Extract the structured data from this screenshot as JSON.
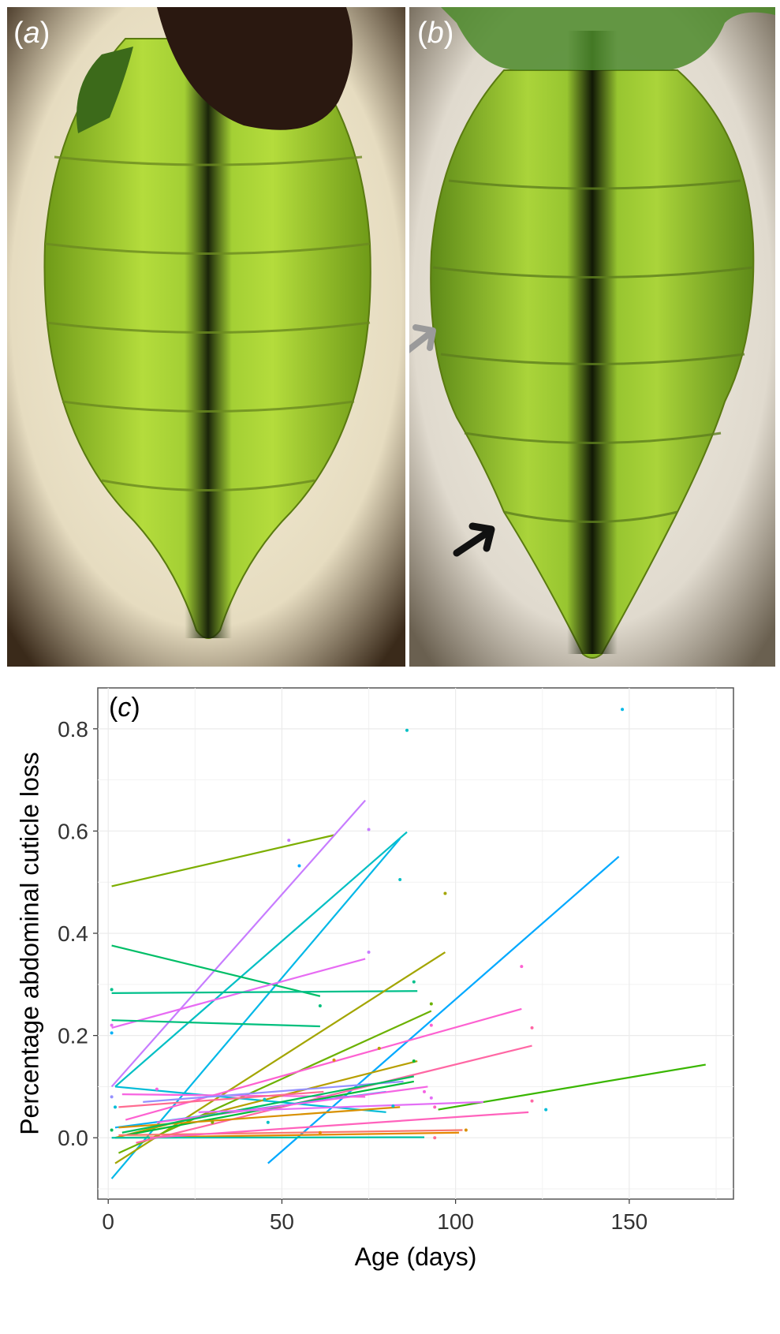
{
  "panels": {
    "a": {
      "label_open": "(",
      "label_letter": "a",
      "label_close": ")"
    },
    "b": {
      "label_open": "(",
      "label_letter": "b",
      "label_close": ")"
    },
    "c": {
      "label_open": "(",
      "label_letter": "c",
      "label_close": ")"
    }
  },
  "colors": {
    "leaf_green": "#8cc82a",
    "midrib_dark": "#1f2a0e",
    "background_light": "#f3ecd6",
    "arrow_gray": "#9a9a9a",
    "arrow_black": "#111111"
  },
  "chart_data": {
    "type": "line",
    "xlabel": "Age (days)",
    "ylabel": "Percentage abdominal cuticle loss",
    "xlim": [
      -3,
      180
    ],
    "ylim": [
      -0.12,
      0.88
    ],
    "x_ticks": [
      0,
      50,
      100,
      150
    ],
    "y_ticks": [
      0.0,
      0.2,
      0.4,
      0.6,
      0.8
    ],
    "x_tick_labels": [
      "0",
      "50",
      "100",
      "150"
    ],
    "y_tick_labels": [
      "0.0",
      "0.2",
      "0.4",
      "0.6",
      "0.8"
    ],
    "grid": true,
    "series": [
      {
        "color": "#7cae00",
        "x": [
          1,
          65
        ],
        "y": [
          0.492,
          0.592
        ]
      },
      {
        "color": "#00bfc4",
        "x": [
          2,
          86
        ],
        "y": [
          0.1,
          0.598
        ]
      },
      {
        "color": "#c77cff",
        "x": [
          1,
          74
        ],
        "y": [
          0.1,
          0.66
        ]
      },
      {
        "color": "#00b8e7",
        "x": [
          1,
          84
        ],
        "y": [
          -0.08,
          0.585
        ]
      },
      {
        "color": "#00a9ff",
        "x": [
          46,
          147
        ],
        "y": [
          -0.05,
          0.55
        ]
      },
      {
        "color": "#00be67",
        "x": [
          1,
          61
        ],
        "y": [
          0.376,
          0.277
        ]
      },
      {
        "color": "#e76bf3",
        "x": [
          1,
          74
        ],
        "y": [
          0.215,
          0.35
        ]
      },
      {
        "color": "#00c08b",
        "x": [
          1,
          89
        ],
        "y": [
          0.283,
          0.287
        ]
      },
      {
        "color": "#00bf7d",
        "x": [
          1,
          61
        ],
        "y": [
          0.23,
          0.218
        ]
      },
      {
        "color": "#a3a500",
        "x": [
          2,
          97
        ],
        "y": [
          -0.05,
          0.363
        ]
      },
      {
        "color": "#6bb100",
        "x": [
          3,
          93
        ],
        "y": [
          -0.03,
          0.248
        ]
      },
      {
        "color": "#fd61d1",
        "x": [
          5,
          119
        ],
        "y": [
          0.035,
          0.252
        ]
      },
      {
        "color": "#ff67a4",
        "x": [
          8,
          122
        ],
        "y": [
          -0.01,
          0.18
        ]
      },
      {
        "color": "#39b600",
        "x": [
          95,
          172
        ],
        "y": [
          0.055,
          0.143
        ]
      },
      {
        "color": "#00bcd8",
        "x": [
          2,
          80
        ],
        "y": [
          0.1,
          0.05
        ]
      },
      {
        "color": "#f763e0",
        "x": [
          4,
          74
        ],
        "y": [
          0.085,
          0.08
        ]
      },
      {
        "color": "#b79f00",
        "x": [
          2,
          89
        ],
        "y": [
          0.0,
          0.15
        ]
      },
      {
        "color": "#00ba38",
        "x": [
          5,
          88
        ],
        "y": [
          0.005,
          0.11
        ]
      },
      {
        "color": "#00b0f6",
        "x": [
          2,
          80
        ],
        "y": [
          0.02,
          0.09
        ]
      },
      {
        "color": "#f8766d",
        "x": [
          3,
          102
        ],
        "y": [
          0.005,
          0.015
        ]
      },
      {
        "color": "#e58700",
        "x": [
          2,
          101
        ],
        "y": [
          0.0,
          0.01
        ]
      },
      {
        "color": "#00c1a3",
        "x": [
          1,
          91
        ],
        "y": [
          0.0,
          0.001
        ]
      },
      {
        "color": "#ff62bc",
        "x": [
          12,
          121
        ],
        "y": [
          0.0,
          0.05
        ]
      },
      {
        "color": "#9590ff",
        "x": [
          10,
          85
        ],
        "y": [
          0.07,
          0.11
        ]
      },
      {
        "color": "#d89000",
        "x": [
          3,
          84
        ],
        "y": [
          0.02,
          0.06
        ]
      },
      {
        "color": "#f564e3",
        "x": [
          14,
          92
        ],
        "y": [
          0.03,
          0.1
        ]
      },
      {
        "color": "#00bd5c",
        "x": [
          4,
          88
        ],
        "y": [
          0.01,
          0.12
        ]
      },
      {
        "color": "#e36ef6",
        "x": [
          26,
          108
        ],
        "y": [
          0.05,
          0.07
        ]
      },
      {
        "color": "#ff6c91",
        "x": [
          3,
          62
        ],
        "y": [
          0.06,
          0.09
        ]
      }
    ],
    "points": [
      {
        "x": 86,
        "y": 0.797,
        "color": "#00bfc4"
      },
      {
        "x": 148,
        "y": 0.838,
        "color": "#00b8e7"
      },
      {
        "x": 75,
        "y": 0.603,
        "color": "#c77cff"
      },
      {
        "x": 52,
        "y": 0.582,
        "color": "#c77cff"
      },
      {
        "x": 55,
        "y": 0.532,
        "color": "#00a9ff"
      },
      {
        "x": 84,
        "y": 0.505,
        "color": "#00bfc4"
      },
      {
        "x": 97,
        "y": 0.478,
        "color": "#a3a500"
      },
      {
        "x": 75,
        "y": 0.363,
        "color": "#c77cff"
      },
      {
        "x": 119,
        "y": 0.335,
        "color": "#fd61d1"
      },
      {
        "x": 1,
        "y": 0.29,
        "color": "#00c08b"
      },
      {
        "x": 88,
        "y": 0.305,
        "color": "#00c08b"
      },
      {
        "x": 61,
        "y": 0.258,
        "color": "#00bf7d"
      },
      {
        "x": 93,
        "y": 0.262,
        "color": "#6bb100"
      },
      {
        "x": 93,
        "y": 0.22,
        "color": "#fd61d1"
      },
      {
        "x": 122,
        "y": 0.215,
        "color": "#ff67a4"
      },
      {
        "x": 1,
        "y": 0.205,
        "color": "#00b0f6"
      },
      {
        "x": 1,
        "y": 0.22,
        "color": "#e76bf3"
      },
      {
        "x": 65,
        "y": 0.152,
        "color": "#d89000"
      },
      {
        "x": 88,
        "y": 0.15,
        "color": "#00ba38"
      },
      {
        "x": 78,
        "y": 0.175,
        "color": "#b79f00"
      },
      {
        "x": 14,
        "y": 0.095,
        "color": "#f763e0"
      },
      {
        "x": 1,
        "y": 0.08,
        "color": "#9590ff"
      },
      {
        "x": 45,
        "y": 0.075,
        "color": "#00bfc4"
      },
      {
        "x": 91,
        "y": 0.09,
        "color": "#f564e3"
      },
      {
        "x": 93,
        "y": 0.078,
        "color": "#e36ef6"
      },
      {
        "x": 2,
        "y": 0.06,
        "color": "#00bcd8"
      },
      {
        "x": 82,
        "y": 0.062,
        "color": "#00bcd8"
      },
      {
        "x": 94,
        "y": 0.06,
        "color": "#ff62bc"
      },
      {
        "x": 122,
        "y": 0.072,
        "color": "#ff67a4"
      },
      {
        "x": 126,
        "y": 0.055,
        "color": "#00bcd8"
      },
      {
        "x": 103,
        "y": 0.015,
        "color": "#d89000"
      },
      {
        "x": 94,
        "y": 0.0,
        "color": "#ff6c91"
      },
      {
        "x": 46,
        "y": 0.03,
        "color": "#00bfc4"
      },
      {
        "x": 61,
        "y": 0.01,
        "color": "#e58700"
      },
      {
        "x": 1,
        "y": 0.015,
        "color": "#00bd5c"
      },
      {
        "x": 30,
        "y": 0.03,
        "color": "#7cae00"
      }
    ]
  }
}
